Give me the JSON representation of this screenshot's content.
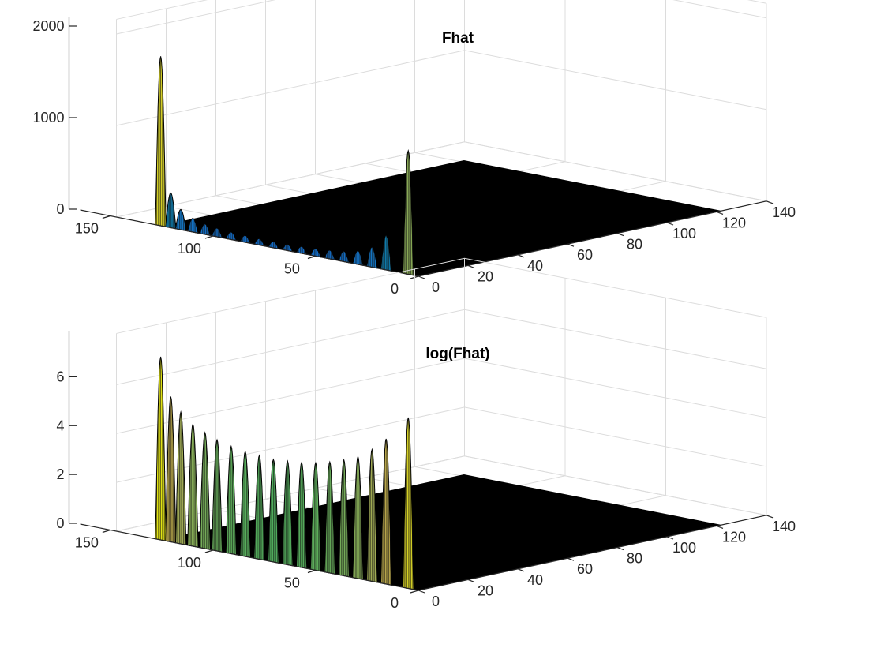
{
  "colors": {
    "background": "#ffffff",
    "floor": "#000000",
    "grid": "#dcdcdc",
    "axis": "#262626",
    "colormap": "parula"
  },
  "chart_data": [
    {
      "type": "surface3d",
      "title": "Fhat",
      "zticks": [
        "0",
        "1000",
        "2000"
      ],
      "zlim": [
        0,
        2000
      ],
      "yticks": [
        "0",
        "50",
        "100",
        "150"
      ],
      "ylim": [
        0,
        150
      ],
      "xticks": [
        "0",
        "20",
        "40",
        "60",
        "80",
        "100",
        "120",
        "140"
      ],
      "xlim": [
        0,
        140
      ],
      "grid": true,
      "ridges": [
        {
          "y": 128,
          "peak": 1850
        },
        {
          "y": 123,
          "peak": 380
        },
        {
          "y": 118,
          "peak": 220
        },
        {
          "y": 112,
          "peak": 150
        },
        {
          "y": 106,
          "peak": 115
        },
        {
          "y": 100,
          "peak": 95
        },
        {
          "y": 93,
          "peak": 82
        },
        {
          "y": 86,
          "peak": 75
        },
        {
          "y": 79,
          "peak": 70
        },
        {
          "y": 72,
          "peak": 68
        },
        {
          "y": 65,
          "peak": 70
        },
        {
          "y": 58,
          "peak": 75
        },
        {
          "y": 51,
          "peak": 82
        },
        {
          "y": 44,
          "peak": 95
        },
        {
          "y": 37,
          "peak": 115
        },
        {
          "y": 30,
          "peak": 150
        },
        {
          "y": 23,
          "peak": 220
        },
        {
          "y": 16,
          "peak": 380
        },
        {
          "y": 5,
          "peak": 1350
        }
      ]
    },
    {
      "type": "surface3d",
      "title": "log(Fhat)",
      "zticks": [
        "0",
        "2",
        "4",
        "6"
      ],
      "zlim": [
        0,
        7.5
      ],
      "yticks": [
        "0",
        "50",
        "100",
        "150"
      ],
      "ylim": [
        0,
        150
      ],
      "xticks": [
        "0",
        "20",
        "40",
        "60",
        "80",
        "100",
        "120",
        "140"
      ],
      "xlim": [
        0,
        140
      ],
      "grid": true,
      "ridges": [
        {
          "y": 128,
          "peak": 7.5
        },
        {
          "y": 123,
          "peak": 5.95
        },
        {
          "y": 118,
          "peak": 5.4
        },
        {
          "y": 112,
          "peak": 5.0
        },
        {
          "y": 106,
          "peak": 4.75
        },
        {
          "y": 100,
          "peak": 4.55
        },
        {
          "y": 93,
          "peak": 4.4
        },
        {
          "y": 86,
          "peak": 4.3
        },
        {
          "y": 79,
          "peak": 4.25
        },
        {
          "y": 72,
          "peak": 4.2
        },
        {
          "y": 65,
          "peak": 4.25
        },
        {
          "y": 58,
          "peak": 4.3
        },
        {
          "y": 51,
          "peak": 4.4
        },
        {
          "y": 44,
          "peak": 4.55
        },
        {
          "y": 37,
          "peak": 4.75
        },
        {
          "y": 30,
          "peak": 5.0
        },
        {
          "y": 23,
          "peak": 5.4
        },
        {
          "y": 16,
          "peak": 5.95
        },
        {
          "y": 5,
          "peak": 7.0
        }
      ]
    }
  ]
}
